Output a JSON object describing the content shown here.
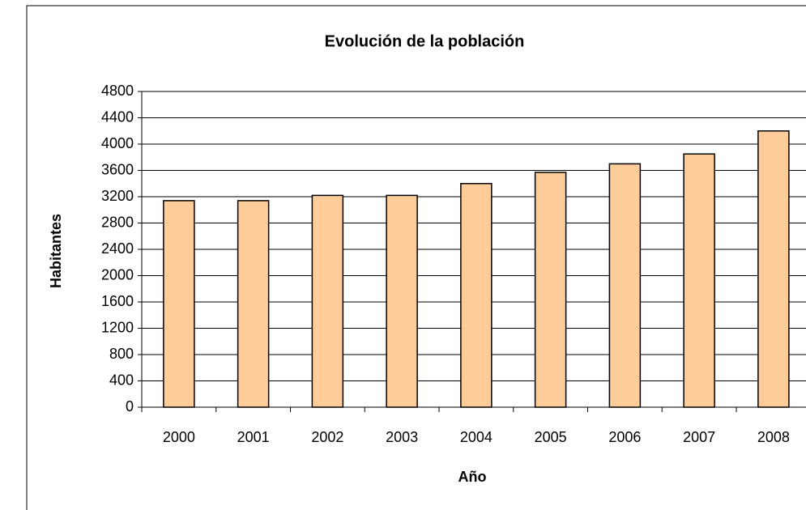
{
  "chart_data": {
    "type": "bar",
    "title": "Evolución de la población",
    "x_label": "Año",
    "y_label": "Habitantes",
    "categories": [
      "2000",
      "2001",
      "2002",
      "2003",
      "2004",
      "2005",
      "2006",
      "2007",
      "2008"
    ],
    "values": [
      3140,
      3140,
      3220,
      3220,
      3400,
      3570,
      3700,
      3850,
      4200
    ],
    "color": "#fdcc99",
    "ylim": [
      0,
      4800
    ],
    "yticks": [
      0,
      400,
      800,
      1200,
      1600,
      2000,
      2400,
      2800,
      3200,
      3600,
      4000,
      4400,
      4800
    ],
    "grid": true
  }
}
